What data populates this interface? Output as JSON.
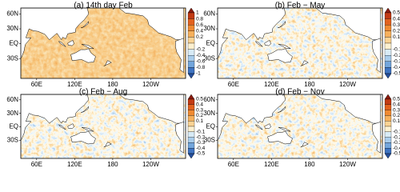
{
  "lat_labels": [
    "60N",
    "30N",
    "EQ",
    "30S"
  ],
  "lon_labels": [
    "60E",
    "120E",
    "180",
    "120W"
  ],
  "panels": [
    {
      "title": "(a) 14th day Feb",
      "field": "warm",
      "colorbar": {
        "labels": [
          "1",
          "0.8",
          "0.6",
          "0.4",
          "0.2",
          "-0.2",
          "-0.4",
          "-0.6",
          "-0.8",
          "-1"
        ],
        "colors": [
          "#8a1a0e",
          "#c23a14",
          "#e2611e",
          "#f08a32",
          "#f6b05c",
          "#fbd394",
          "#fdf0cf",
          "#d8ebf6",
          "#a9cdec",
          "#73a6dc",
          "#3f74c2",
          "#254f9c"
        ]
      }
    },
    {
      "title": "(b) Feb − May",
      "field": "mixed",
      "colorbar": {
        "labels": [
          "0.5",
          "0.4",
          "0.3",
          "0.2",
          "0.1",
          "-0.1",
          "-0.2",
          "-0.3",
          "-0.4",
          "-0.5"
        ],
        "colors": [
          "#8a1a0e",
          "#c23a14",
          "#e2611e",
          "#f08a32",
          "#f6b05c",
          "#fbd394",
          "#fdf0cf",
          "#d8ebf6",
          "#a9cdec",
          "#73a6dc",
          "#3f74c2",
          "#254f9c"
        ]
      }
    },
    {
      "title": "(c) Feb − Aug",
      "field": "mixed",
      "colorbar": {
        "labels": [
          "0.5",
          "0.4",
          "0.3",
          "0.2",
          "0.1",
          "-0.1",
          "-0.2",
          "-0.3",
          "-0.4",
          "-0.5"
        ],
        "colors": [
          "#8a1a0e",
          "#c23a14",
          "#e2611e",
          "#f08a32",
          "#f6b05c",
          "#fbd394",
          "#fdf0cf",
          "#d8ebf6",
          "#a9cdec",
          "#73a6dc",
          "#3f74c2",
          "#254f9c"
        ]
      }
    },
    {
      "title": "(d) Feb − Nov",
      "field": "mixed",
      "colorbar": {
        "labels": [
          "0.5",
          "0.4",
          "0.3",
          "0.2",
          "0.1",
          "-0.1",
          "-0.2",
          "-0.3",
          "-0.4",
          "-0.5"
        ],
        "colors": [
          "#8a1a0e",
          "#c23a14",
          "#e2611e",
          "#f08a32",
          "#f6b05c",
          "#fbd394",
          "#fdf0cf",
          "#d8ebf6",
          "#a9cdec",
          "#73a6dc",
          "#3f74c2",
          "#254f9c"
        ]
      }
    }
  ]
}
